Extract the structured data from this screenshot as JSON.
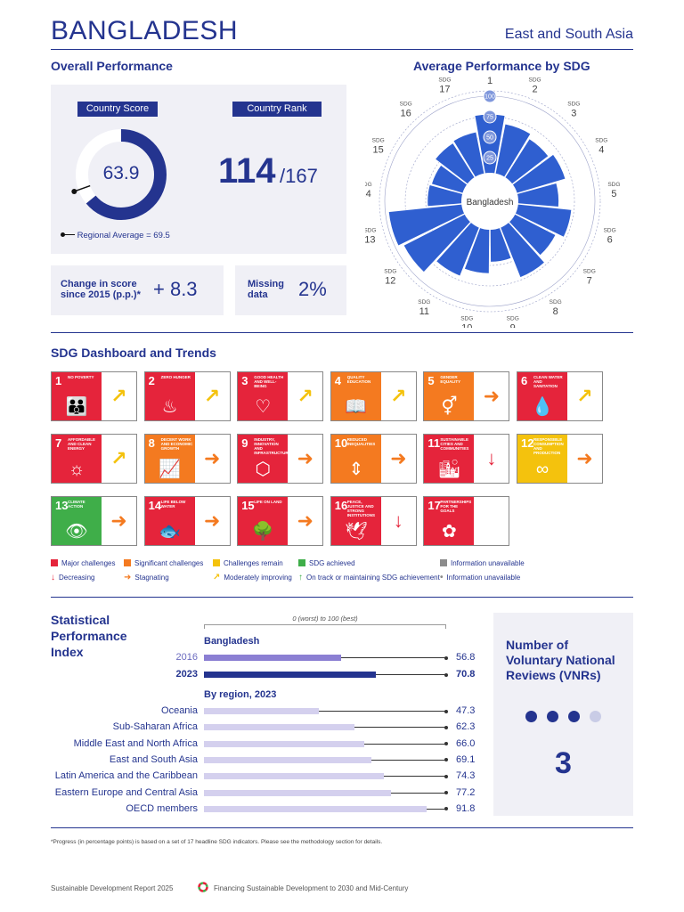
{
  "header": {
    "country": "BANGLADESH",
    "region": "East and South Asia"
  },
  "overall": {
    "title": "Overall Performance",
    "score_tag": "Country Score",
    "score": "63.9",
    "score_value": 63.9,
    "rank_tag": "Country Rank",
    "rank": "114",
    "rank_total": "/167",
    "regional_avg_label": "Regional Average = 69.5",
    "regional_avg_value": 69.5,
    "change_label": "Change in score since 2015 (p.p.)*",
    "change_value": "+ 8.3",
    "missing_label": "Missing data",
    "missing_value": "2%"
  },
  "radar": {
    "title": "Average Performance by SDG",
    "center_label": "Bangladesh",
    "sdg_prefix": "SDG",
    "scale_labels": [
      "25",
      "50",
      "75",
      "100"
    ],
    "goals": [
      {
        "goal": "1",
        "value": 78
      },
      {
        "goal": "2",
        "value": 68
      },
      {
        "goal": "3",
        "value": 62
      },
      {
        "goal": "4",
        "value": 68
      },
      {
        "goal": "5",
        "value": 56
      },
      {
        "goal": "6",
        "value": 72
      },
      {
        "goal": "7",
        "value": 62
      },
      {
        "goal": "8",
        "value": 72
      },
      {
        "goal": "9",
        "value": 46
      },
      {
        "goal": "10",
        "value": 60
      },
      {
        "goal": "11",
        "value": 70
      },
      {
        "goal": "12",
        "value": 90
      },
      {
        "goal": "13",
        "value": 96
      },
      {
        "goal": "14",
        "value": 48
      },
      {
        "goal": "15",
        "value": 46
      },
      {
        "goal": "16",
        "value": 56
      },
      {
        "goal": "17",
        "value": 58
      }
    ],
    "color": "#2f5fd0"
  },
  "dashboard": {
    "title": "SDG Dashboard and Trends",
    "tiles": [
      {
        "num": "1",
        "label": "No poverty",
        "glyph": "👪",
        "color": "#e5243b",
        "trend_color": "#f4c20d",
        "trend": "↗"
      },
      {
        "num": "2",
        "label": "Zero hunger",
        "glyph": "♨",
        "color": "#e5243b",
        "trend_color": "#f4c20d",
        "trend": "↗"
      },
      {
        "num": "3",
        "label": "Good health and well-being",
        "glyph": "♡",
        "color": "#e5243b",
        "trend_color": "#f4c20d",
        "trend": "↗"
      },
      {
        "num": "4",
        "label": "Quality education",
        "glyph": "📖",
        "color": "#f47a20",
        "trend_color": "#f4c20d",
        "trend": "↗"
      },
      {
        "num": "5",
        "label": "Gender equality",
        "glyph": "⚥",
        "color": "#f47a20",
        "trend_color": "#f47a20",
        "trend": "➜"
      },
      {
        "num": "6",
        "label": "Clean water and sanitation",
        "glyph": "💧",
        "color": "#e5243b",
        "trend_color": "#f4c20d",
        "trend": "↗"
      },
      {
        "num": "7",
        "label": "Affordable and clean energy",
        "glyph": "☼",
        "color": "#e5243b",
        "trend_color": "#f4c20d",
        "trend": "↗"
      },
      {
        "num": "8",
        "label": "Decent work and economic growth",
        "glyph": "📈",
        "color": "#f47a20",
        "trend_color": "#f47a20",
        "trend": "➜"
      },
      {
        "num": "9",
        "label": "Industry, innovation and infrastructure",
        "glyph": "⬡",
        "color": "#e5243b",
        "trend_color": "#f47a20",
        "trend": "➜"
      },
      {
        "num": "10",
        "label": "Reduced inequalities",
        "glyph": "⇕",
        "color": "#f47a20",
        "trend_color": "#f47a20",
        "trend": "➜"
      },
      {
        "num": "11",
        "label": "Sustainable cities and communities",
        "glyph": "🏙",
        "color": "#e5243b",
        "trend_color": "#e5243b",
        "trend": "↓"
      },
      {
        "num": "12",
        "label": "Responsible consumption and production",
        "glyph": "∞",
        "color": "#f4c20d",
        "trend_color": "#f47a20",
        "trend": "➜"
      },
      {
        "num": "13",
        "label": "Climate action",
        "glyph": "👁",
        "color": "#3fae49",
        "trend_color": "#f47a20",
        "trend": "➜"
      },
      {
        "num": "14",
        "label": "Life below water",
        "glyph": "🐟",
        "color": "#e5243b",
        "trend_color": "#f47a20",
        "trend": "➜"
      },
      {
        "num": "15",
        "label": "Life on land",
        "glyph": "🌳",
        "color": "#e5243b",
        "trend_color": "#f47a20",
        "trend": "➜"
      },
      {
        "num": "16",
        "label": "Peace, justice and strong institutions",
        "glyph": "🕊",
        "color": "#e5243b",
        "trend_color": "#e5243b",
        "trend": "↓"
      },
      {
        "num": "17",
        "label": "Partnerships for the goals",
        "glyph": "✿",
        "color": "#e5243b",
        "trend_color": "#ffffff",
        "trend": ""
      }
    ],
    "legend_colors": [
      {
        "label": "Major challenges",
        "color": "#e5243b"
      },
      {
        "label": "Significant challenges",
        "color": "#f47a20"
      },
      {
        "label": "Challenges remain",
        "color": "#f4c20d"
      },
      {
        "label": "SDG achieved",
        "color": "#3fae49"
      },
      {
        "label": "Information unavailable",
        "color": "#8c8c8c"
      }
    ],
    "legend_trends": [
      {
        "label": "Decreasing",
        "symbol": "↓",
        "color": "#e5243b"
      },
      {
        "label": "Stagnating",
        "symbol": "➜",
        "color": "#f47a20"
      },
      {
        "label": "Moderately improving",
        "symbol": "↗",
        "color": "#f4c20d"
      },
      {
        "label": "On track or maintaining SDG achievement",
        "symbol": "↑",
        "color": "#3fae49"
      },
      {
        "label": "Information unavailable",
        "symbol": "•",
        "color": "#8c8c8c"
      }
    ]
  },
  "spi": {
    "title_line1": "Statistical",
    "title_line2": "Performance",
    "title_line3": "Index",
    "scale_note": "0 (worst) to 100 (best)",
    "country_heading": "Bangladesh",
    "country_rows": [
      {
        "label": "2016",
        "value": 56.8,
        "value_text": "56.8",
        "color": "#8b7fd3"
      },
      {
        "label": "2023",
        "value": 70.8,
        "value_text": "70.8",
        "color": "#24348f"
      }
    ],
    "region_heading": "By region, 2023",
    "region_rows": [
      {
        "label": "Oceania",
        "value": 47.3,
        "value_text": "47.3"
      },
      {
        "label": "Sub-Saharan Africa",
        "value": 62.3,
        "value_text": "62.3"
      },
      {
        "label": "Middle East and North Africa",
        "value": 66.0,
        "value_text": "66.0"
      },
      {
        "label": "East and South Asia",
        "value": 69.1,
        "value_text": "69.1"
      },
      {
        "label": "Latin America and the Caribbean",
        "value": 74.3,
        "value_text": "74.3"
      },
      {
        "label": "Eastern Europe and Central Asia",
        "value": 77.2,
        "value_text": "77.2"
      },
      {
        "label": "OECD members",
        "value": 91.8,
        "value_text": "91.8"
      }
    ],
    "region_bar_color": "#d4d0ee"
  },
  "vnr": {
    "title": "Number of Voluntary National Reviews (VNRs)",
    "count": "3",
    "count_value": 3,
    "dots_total": 4
  },
  "footnote": "*Progress (in percentage points) is based on a set of 17 headline SDG indicators. Please see the methodology section for details.",
  "footer": {
    "left": "Sustainable Development Report 2025",
    "right": "Financing Sustainable Development to 2030 and Mid-Century"
  }
}
